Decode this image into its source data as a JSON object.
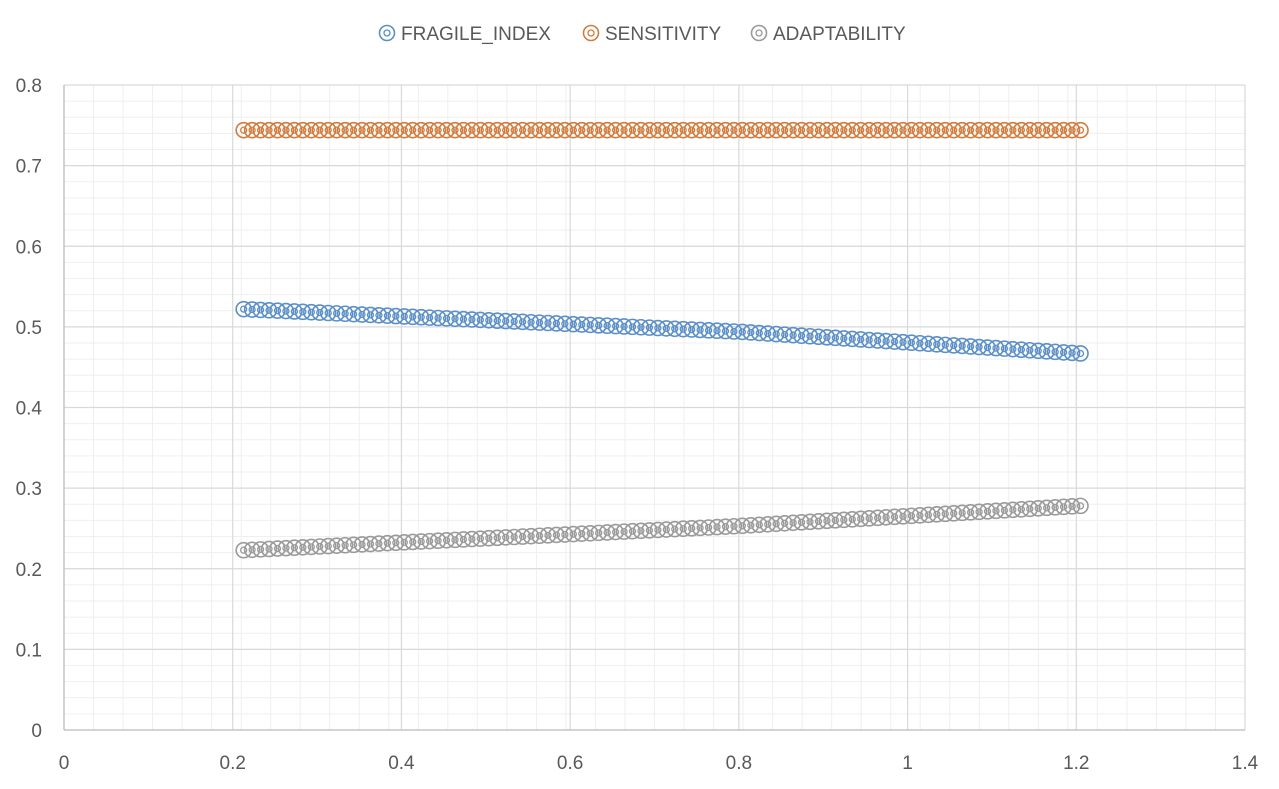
{
  "chart_data": {
    "type": "scatter",
    "title": "",
    "xlabel": "",
    "ylabel": "",
    "xlim": [
      0,
      1.4
    ],
    "ylim": [
      0,
      0.8
    ],
    "x_ticks": [
      "0",
      "0.2",
      "0.4",
      "0.6",
      "0.8",
      "1",
      "1.2",
      "1.4"
    ],
    "y_ticks": [
      "0",
      "0.1",
      "0.2",
      "0.3",
      "0.4",
      "0.5",
      "0.6",
      "0.7",
      "0.8"
    ],
    "grid": true,
    "minor_grid": true,
    "legend_position": "top",
    "marker": "double-circle",
    "x_range": [
      0.213,
      1.205
    ],
    "points_per_series": 100,
    "series": [
      {
        "name": "FRAGILE_INDEX",
        "color": "#5b8fc7",
        "y_start": 0.522,
        "y_mid": [
          0.8,
          0.494
        ],
        "y_end": 0.467
      },
      {
        "name": "SENSITIVITY",
        "color": "#d17b3c",
        "y_start": 0.744,
        "y_mid": [
          0.8,
          0.744
        ],
        "y_end": 0.744
      },
      {
        "name": "ADAPTABILITY",
        "color": "#9a9a9a",
        "y_start": 0.223,
        "y_mid": [
          0.8,
          0.253
        ],
        "y_end": 0.278
      }
    ]
  }
}
